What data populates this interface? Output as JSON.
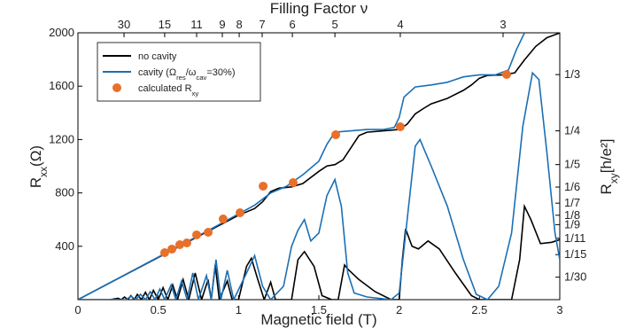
{
  "chart_data": {
    "type": "line",
    "xlabel": "Magnetic field (T)",
    "ylabel": [
      "R",
      "xx",
      "(Ω)"
    ],
    "y2label": [
      "R",
      "xy",
      "[h/e²]"
    ],
    "x2label": "Filling Factor ν",
    "xlim": [
      0,
      3
    ],
    "ylim": [
      0,
      2000
    ],
    "y2lim": [
      0,
      0.3952
    ],
    "xticks": [
      0,
      0.5,
      1,
      1.5,
      2,
      2.5,
      3
    ],
    "yticks": [
      400,
      800,
      1200,
      1600,
      2000
    ],
    "x2ticks": [
      {
        "value": 2.647,
        "label": "3"
      },
      {
        "value": 2.007,
        "label": "4"
      },
      {
        "value": 1.6,
        "label": "5"
      },
      {
        "value": 1.335,
        "label": "6"
      },
      {
        "value": 1.147,
        "label": "7"
      },
      {
        "value": 1.004,
        "label": "8"
      },
      {
        "value": 0.899,
        "label": "9"
      },
      {
        "value": 0.739,
        "label": "11"
      },
      {
        "value": 0.54,
        "label": "15"
      },
      {
        "value": 0.287,
        "label": "30"
      }
    ],
    "y2ticks": [
      {
        "value": 0.3333,
        "label": "1/3"
      },
      {
        "value": 0.25,
        "label": "1/4"
      },
      {
        "value": 0.2,
        "label": "1/5"
      },
      {
        "value": 0.1667,
        "label": "1/6"
      },
      {
        "value": 0.1429,
        "label": "1/7"
      },
      {
        "value": 0.125,
        "label": "1/8"
      },
      {
        "value": 0.1111,
        "label": "1/9"
      },
      {
        "value": 0.0909,
        "label": "1/11"
      },
      {
        "value": 0.0667,
        "label": "1/15"
      },
      {
        "value": 0.0333,
        "label": "1/30"
      }
    ],
    "grid": false,
    "legend": "top-left",
    "series": [
      {
        "name": [
          "no cavity"
        ],
        "type": "line",
        "color": "#000000",
        "axis": "y2",
        "x": [
          0,
          0.5,
          0.8,
          1.0,
          1.1,
          1.15,
          1.2,
          1.25,
          1.33,
          1.4,
          1.5,
          1.55,
          1.6,
          1.65,
          1.7,
          1.75,
          1.8,
          1.9,
          2.0,
          2.05,
          2.1,
          2.15,
          2.2,
          2.3,
          2.4,
          2.45,
          2.5,
          2.55,
          2.65,
          2.72,
          2.78,
          2.85,
          2.92,
          3.0
        ],
        "values": [
          0,
          0.0625,
          0.1,
          0.125,
          0.135,
          0.145,
          0.16,
          0.165,
          0.167,
          0.172,
          0.19,
          0.198,
          0.2,
          0.207,
          0.225,
          0.243,
          0.248,
          0.25,
          0.252,
          0.26,
          0.275,
          0.283,
          0.29,
          0.298,
          0.31,
          0.318,
          0.328,
          0.332,
          0.333,
          0.336,
          0.355,
          0.375,
          0.388,
          0.395
        ]
      },
      {
        "name": [
          "cavity (Ω",
          "res",
          "/ω",
          "cav",
          "=30%)"
        ],
        "type": "line",
        "color": "#1a6fb5",
        "axis": "y2",
        "x": [
          0,
          0.5,
          0.8,
          1.0,
          1.1,
          1.2,
          1.3,
          1.4,
          1.5,
          1.55,
          1.6,
          1.7,
          1.8,
          1.9,
          1.97,
          2.0,
          2.03,
          2.1,
          2.2,
          2.3,
          2.4,
          2.5,
          2.6,
          2.68,
          2.73,
          2.78
        ],
        "values": [
          0,
          0.063,
          0.101,
          0.127,
          0.14,
          0.158,
          0.168,
          0.185,
          0.205,
          0.23,
          0.248,
          0.25,
          0.252,
          0.252,
          0.255,
          0.27,
          0.3,
          0.315,
          0.318,
          0.322,
          0.33,
          0.333,
          0.333,
          0.34,
          0.37,
          0.395
        ]
      },
      {
        "type": "line",
        "color": "#000000",
        "axis": "y",
        "x": [
          0,
          0.2,
          0.25,
          0.27,
          0.29,
          0.31,
          0.33,
          0.35,
          0.37,
          0.395,
          0.42,
          0.445,
          0.47,
          0.5,
          0.53,
          0.56,
          0.59,
          0.62,
          0.655,
          0.69,
          0.73,
          0.77,
          0.81,
          0.83,
          0.855,
          0.88,
          0.93,
          0.96,
          1.0,
          1.05,
          1.08,
          1.12,
          1.16,
          1.2,
          1.23,
          1.33,
          1.37,
          1.41,
          1.47,
          1.52,
          1.58,
          1.62,
          1.66,
          1.68,
          1.75,
          1.85,
          1.95,
          2.0,
          2.02,
          2.04,
          2.08,
          2.12,
          2.18,
          2.25,
          2.35,
          2.45,
          2.5,
          2.7,
          2.75,
          2.78,
          2.82,
          2.88,
          2.95,
          3.0
        ],
        "values": [
          0,
          0,
          10,
          0,
          20,
          0,
          30,
          0,
          40,
          0,
          55,
          0,
          70,
          0,
          90,
          0,
          110,
          0,
          150,
          0,
          200,
          0,
          150,
          0,
          260,
          0,
          140,
          0,
          0,
          250,
          310,
          150,
          0,
          130,
          0,
          0,
          300,
          360,
          250,
          30,
          0,
          0,
          260,
          230,
          150,
          60,
          0,
          0,
          300,
          530,
          400,
          380,
          440,
          380,
          200,
          30,
          0,
          0,
          300,
          700,
          600,
          420,
          430,
          450
        ]
      },
      {
        "type": "line",
        "color": "#1a6fb5",
        "axis": "y",
        "x": [
          0,
          0.3,
          0.33,
          0.36,
          0.39,
          0.42,
          0.45,
          0.48,
          0.51,
          0.54,
          0.58,
          0.61,
          0.645,
          0.68,
          0.715,
          0.75,
          0.8,
          0.83,
          0.86,
          0.89,
          0.93,
          0.97,
          1.05,
          1.1,
          1.15,
          1.2,
          1.28,
          1.33,
          1.37,
          1.41,
          1.45,
          1.5,
          1.55,
          1.6,
          1.64,
          1.68,
          1.72,
          1.8,
          1.95,
          2.0,
          2.05,
          2.1,
          2.13,
          2.2,
          2.3,
          2.4,
          2.48,
          2.55,
          2.62,
          2.7,
          2.77,
          2.83,
          2.87,
          2.92,
          2.97,
          3.0
        ],
        "values": [
          0,
          0,
          25,
          0,
          40,
          0,
          60,
          0,
          80,
          0,
          110,
          0,
          140,
          0,
          200,
          0,
          180,
          0,
          300,
          0,
          220,
          0,
          200,
          330,
          100,
          0,
          100,
          400,
          520,
          600,
          440,
          500,
          780,
          900,
          700,
          200,
          50,
          20,
          0,
          50,
          600,
          1150,
          1200,
          1000,
          700,
          300,
          40,
          0,
          100,
          500,
          1300,
          1700,
          1650,
          1100,
          500,
          300
        ]
      },
      {
        "name": [
          "calculated R",
          "xy"
        ],
        "type": "scatter",
        "color": "#e8702a",
        "axis": "y2",
        "x": [
          0.54,
          0.585,
          0.634,
          0.678,
          0.739,
          0.811,
          0.904,
          1.009,
          1.153,
          1.34,
          1.605,
          2.007,
          2.669
        ],
        "values": [
          0.0696,
          0.0749,
          0.0814,
          0.084,
          0.0959,
          0.0998,
          0.1195,
          0.1287,
          0.1681,
          0.1733,
          0.2442,
          0.256,
          0.3335
        ]
      }
    ]
  }
}
